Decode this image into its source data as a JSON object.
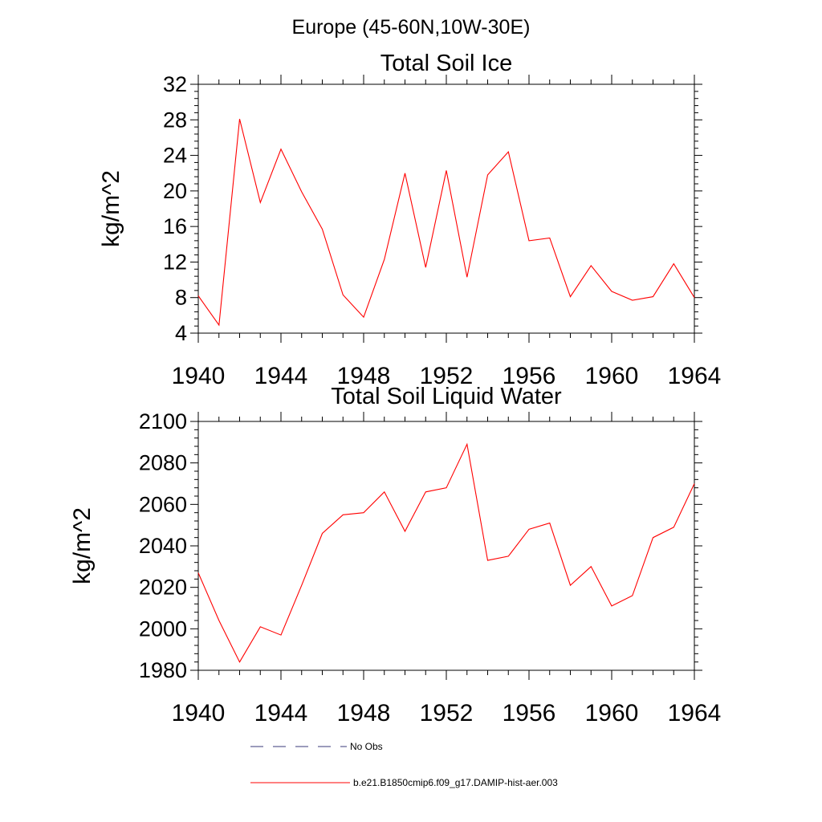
{
  "page_title": "Europe (45-60N,10W-30E)",
  "legend": {
    "items": [
      {
        "label": "No Obs",
        "color": "#3a3a7a",
        "dash": true
      },
      {
        "label": "b.e21.B1850cmip6.f09_g17.DAMIP-hist-aer.003",
        "color": "#ff0000",
        "dash": false
      }
    ]
  },
  "chart_data": [
    {
      "type": "line",
      "title": "Total Soil Ice",
      "xlabel": "",
      "ylabel": "kg/m^2",
      "xlim": [
        1940,
        1964
      ],
      "ylim": [
        4,
        32
      ],
      "xticks": [
        1940,
        1944,
        1948,
        1952,
        1956,
        1960,
        1964
      ],
      "yticks": [
        4,
        8,
        12,
        16,
        20,
        24,
        28,
        32
      ],
      "grid": false,
      "series": [
        {
          "name": "b.e21.B1850cmip6.f09_g17.DAMIP-hist-aer.003",
          "color": "#ff0000",
          "x": [
            1940,
            1941,
            1942,
            1943,
            1944,
            1945,
            1946,
            1947,
            1948,
            1949,
            1950,
            1951,
            1952,
            1953,
            1954,
            1955,
            1956,
            1957,
            1958,
            1959,
            1960,
            1961,
            1962,
            1963,
            1964
          ],
          "y": [
            8.2,
            4.9,
            28.1,
            18.7,
            24.7,
            19.9,
            15.7,
            8.3,
            5.8,
            12.3,
            22.0,
            11.4,
            22.3,
            10.3,
            21.8,
            24.4,
            14.4,
            14.7,
            8.1,
            11.6,
            8.7,
            7.7,
            8.1,
            11.8,
            8.0
          ]
        }
      ]
    },
    {
      "type": "line",
      "title": "Total Soil Liquid Water",
      "xlabel": "",
      "ylabel": "kg/m^2",
      "xlim": [
        1940,
        1964
      ],
      "ylim": [
        1980,
        2100
      ],
      "xticks": [
        1940,
        1944,
        1948,
        1952,
        1956,
        1960,
        1964
      ],
      "yticks": [
        1980,
        2000,
        2020,
        2040,
        2060,
        2080,
        2100
      ],
      "grid": false,
      "series": [
        {
          "name": "b.e21.B1850cmip6.f09_g17.DAMIP-hist-aer.003",
          "color": "#ff0000",
          "x": [
            1940,
            1941,
            1942,
            1943,
            1944,
            1945,
            1946,
            1947,
            1948,
            1949,
            1950,
            1951,
            1952,
            1953,
            1954,
            1955,
            1956,
            1957,
            1958,
            1959,
            1960,
            1961,
            1962,
            1963,
            1964
          ],
          "y": [
            2027,
            2004,
            1984,
            2001,
            1997,
            2021,
            2046,
            2055,
            2056,
            2066,
            2047,
            2066,
            2068,
            2089,
            2033,
            2035,
            2048,
            2051,
            2021,
            2030,
            2011,
            2016,
            2044,
            2049,
            2070
          ]
        }
      ]
    }
  ]
}
